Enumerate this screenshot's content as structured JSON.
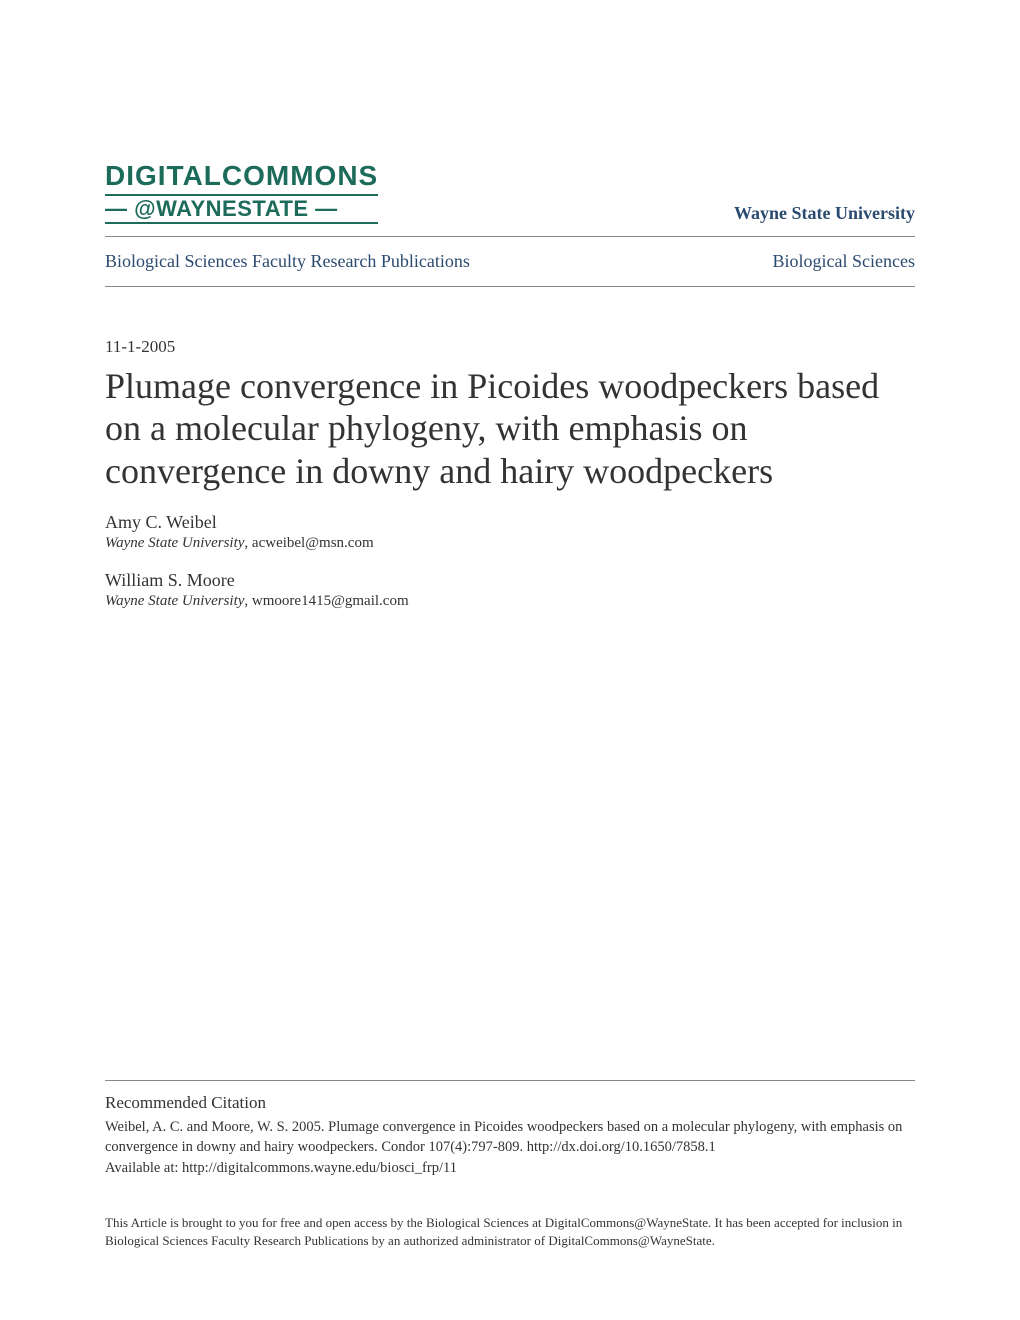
{
  "header": {
    "logo_line1": "DIGITALCOMMONS",
    "logo_line2": "— @WAYNESTATE —",
    "university_link": "Wayne State University"
  },
  "breadcrumb": {
    "left": "Biological Sciences Faculty Research Publications",
    "right": "Biological Sciences"
  },
  "article": {
    "date": "11-1-2005",
    "title": "Plumage convergence in Picoides woodpeckers based on a molecular phylogeny, with emphasis on convergence in downy and hairy woodpeckers"
  },
  "authors": [
    {
      "name": "Amy C. Weibel",
      "affiliation_institution": "Wayne State University",
      "affiliation_email": ", acweibel@msn.com"
    },
    {
      "name": "William S. Moore",
      "affiliation_institution": "Wayne State University",
      "affiliation_email": ", wmoore1415@gmail.com"
    }
  ],
  "citation": {
    "heading": "Recommended Citation",
    "text": "Weibel, A. C. and Moore, W. S. 2005. Plumage convergence in Picoides woodpeckers based on a molecular phylogeny, with emphasis on convergence in downy and hairy woodpeckers. Condor 107(4):797-809. http://dx.doi.org/10.1650/7858.1",
    "available_at": "Available at: http://digitalcommons.wayne.edu/biosci_frp/11"
  },
  "disclaimer": "This Article is brought to you for free and open access by the Biological Sciences at DigitalCommons@WayneState. It has been accepted for inclusion in Biological Sciences Faculty Research Publications by an authorized administrator of DigitalCommons@WayneState.",
  "colors": {
    "logo_green": "#1d6b5a",
    "link_blue": "#2b4a6f",
    "text_dark": "#333333",
    "divider_gray": "#888888",
    "background": "#ffffff"
  },
  "typography": {
    "title_fontsize": 36,
    "body_fontsize": 17,
    "author_fontsize": 18,
    "affiliation_fontsize": 15,
    "citation_fontsize": 14.5,
    "disclaimer_fontsize": 13,
    "logo_fontsize_line1": 28,
    "logo_fontsize_line2": 22
  }
}
